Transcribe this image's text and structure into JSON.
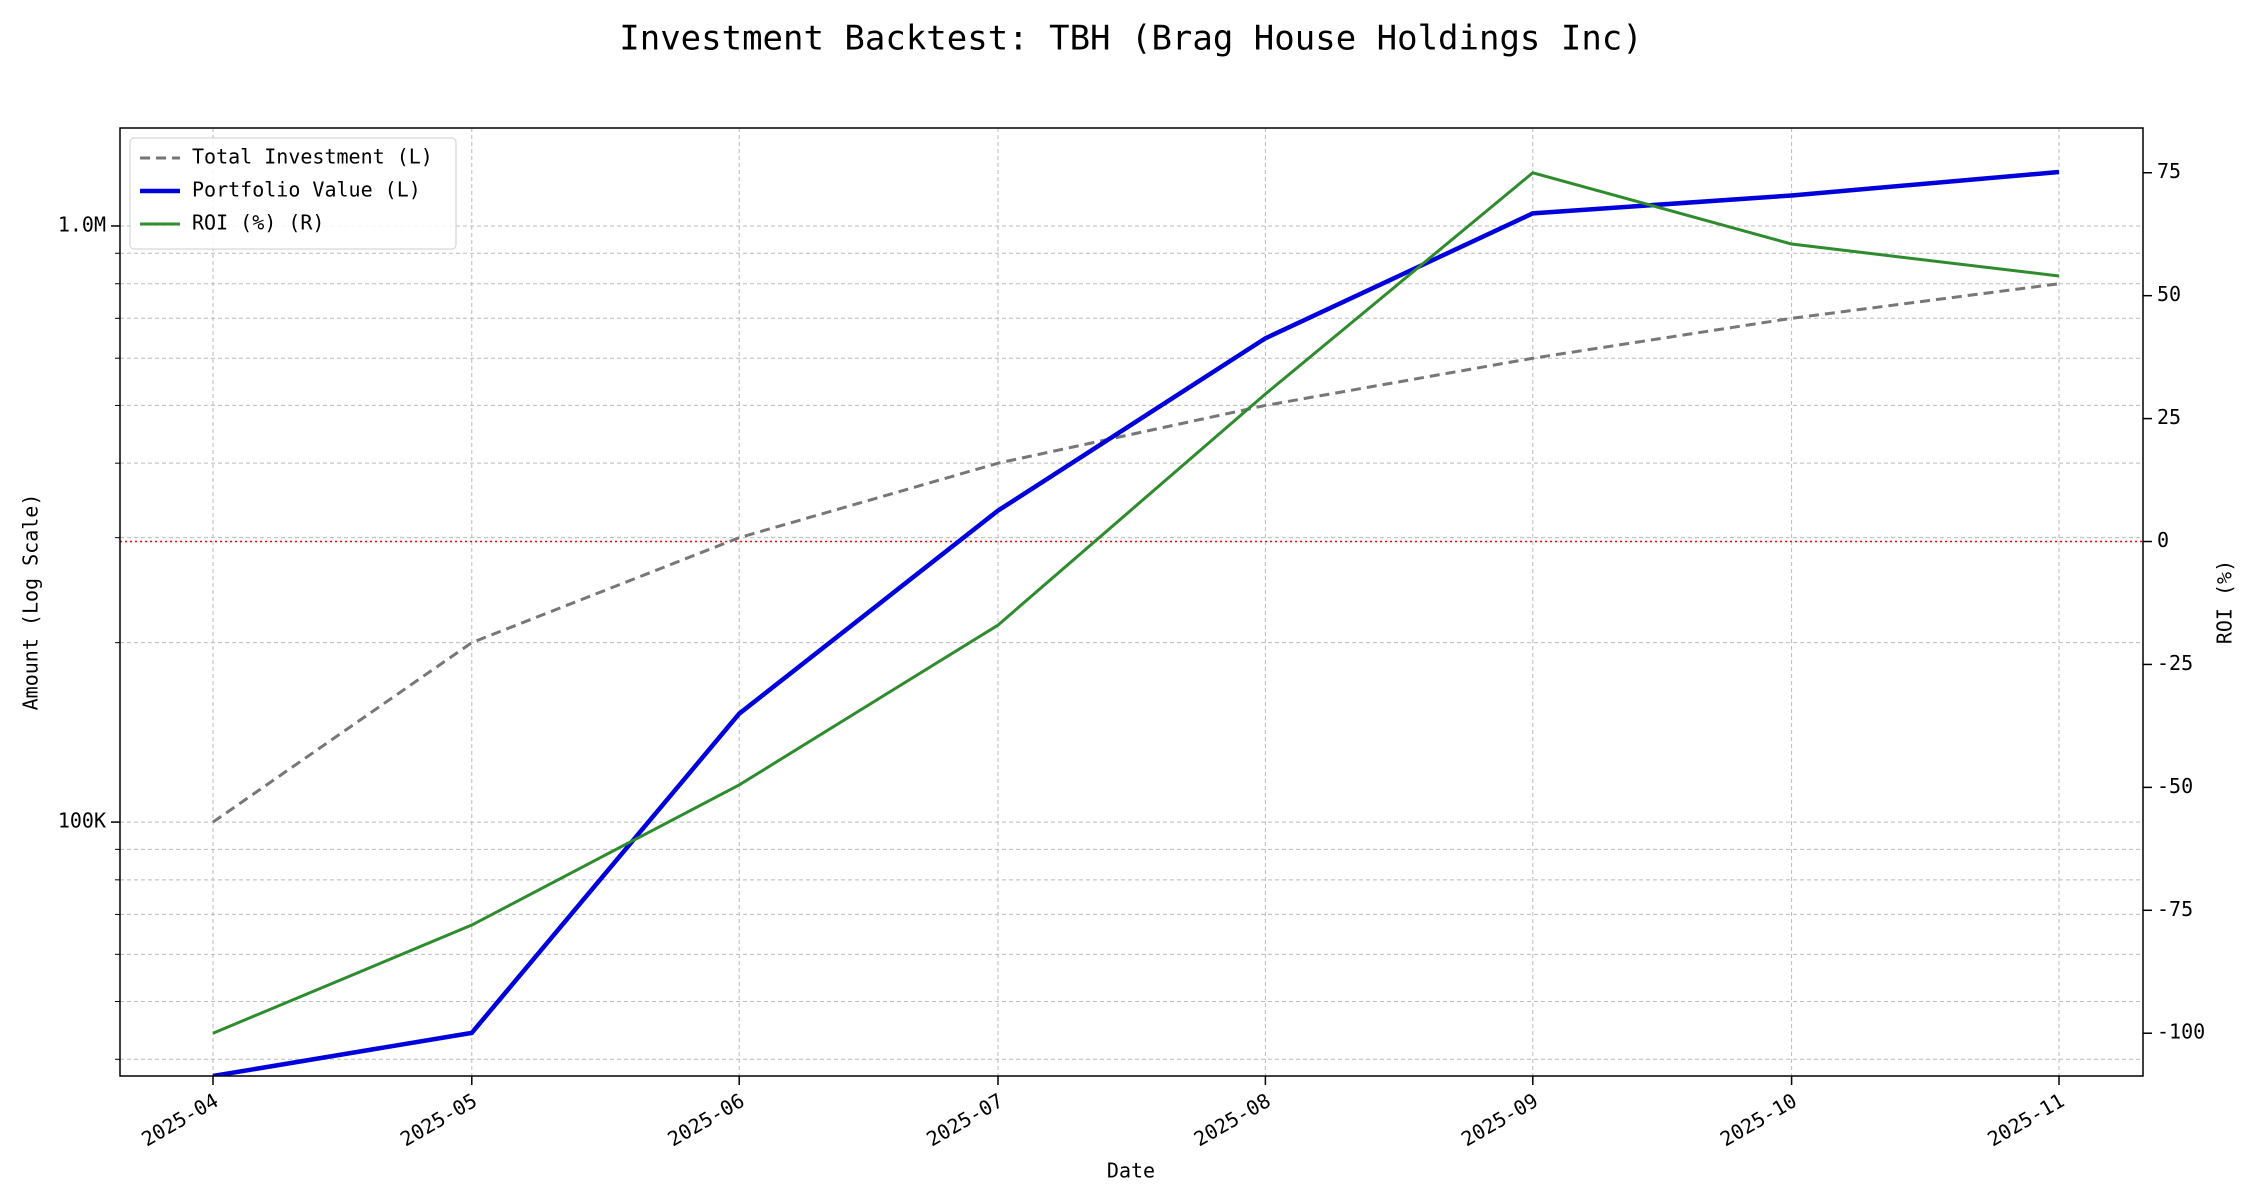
{
  "chart_data": {
    "type": "line",
    "title": "Investment Backtest: TBH (Brag House Holdings Inc)",
    "xlabel": "Date",
    "ylabel": "Amount (Log Scale)",
    "y2label": "ROI (%)",
    "x": [
      "2025-04",
      "2025-05",
      "2025-06",
      "2025-07",
      "2025-08",
      "2025-09",
      "2025-10",
      "2025-11"
    ],
    "series": [
      {
        "name": "Total Investment (L)",
        "color": "#777777",
        "style": "dashed",
        "values": [
          100000,
          200000,
          300000,
          400000,
          500000,
          600000,
          700000,
          800000
        ]
      },
      {
        "name": "Portfolio Value (L)",
        "color": "#0000dd",
        "style": "thick",
        "values": [
          0,
          44300,
          152000,
          333000,
          648000,
          1050000,
          1125000,
          1232000
        ]
      },
      {
        "name": "ROI (%) (R)",
        "color": "#2e8b2e",
        "style": "solid",
        "axis": "y2",
        "values": [
          -100,
          -78,
          -49.5,
          -17,
          30,
          75,
          60.5,
          54
        ]
      }
    ],
    "log_scale": true,
    "ylim": [
      37500,
      1460000
    ],
    "yticks": [
      {
        "value": 100000,
        "label": "100K"
      },
      {
        "value": 1000000,
        "label": "1.0M"
      }
    ],
    "y2lim": [
      -108.7,
      84.1
    ],
    "y2ticks": [
      -100,
      -75,
      -50,
      -25,
      0,
      25,
      50,
      75
    ],
    "grid": true,
    "minor_grid": true,
    "legend": "upper-left",
    "left_axis_color": "#0000dd",
    "right_axis_color": "#2e8b2e",
    "reference_line": {
      "axis": "y2",
      "value": 0,
      "color": "#ff0000"
    }
  }
}
